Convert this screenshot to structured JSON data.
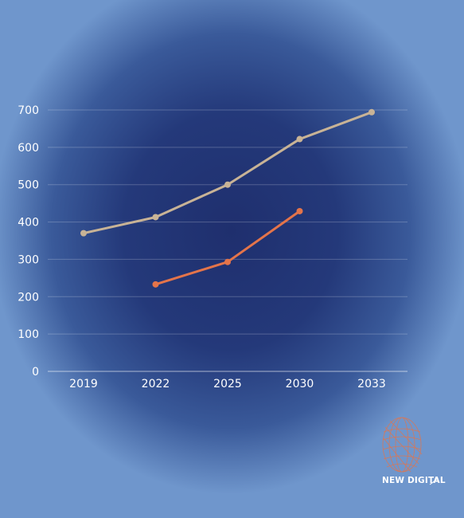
{
  "chart_data": {
    "type": "line",
    "x": [
      "2019",
      "2022",
      "2025",
      "2030",
      "2033"
    ],
    "series": [
      {
        "values": [
          370,
          413,
          500,
          622,
          694
        ],
        "color": "#c8b396"
      },
      {
        "values": [
          null,
          233,
          293,
          429,
          null
        ],
        "color": "#e4744a"
      }
    ],
    "ylim": [
      0,
      700
    ],
    "yticks": [
      0,
      100,
      200,
      300,
      400,
      500,
      600,
      700
    ],
    "grid": true
  },
  "logo": {
    "text": "NEW DIGITAL",
    "icon": "globe-mesh-icon",
    "color": "#e4744a"
  }
}
